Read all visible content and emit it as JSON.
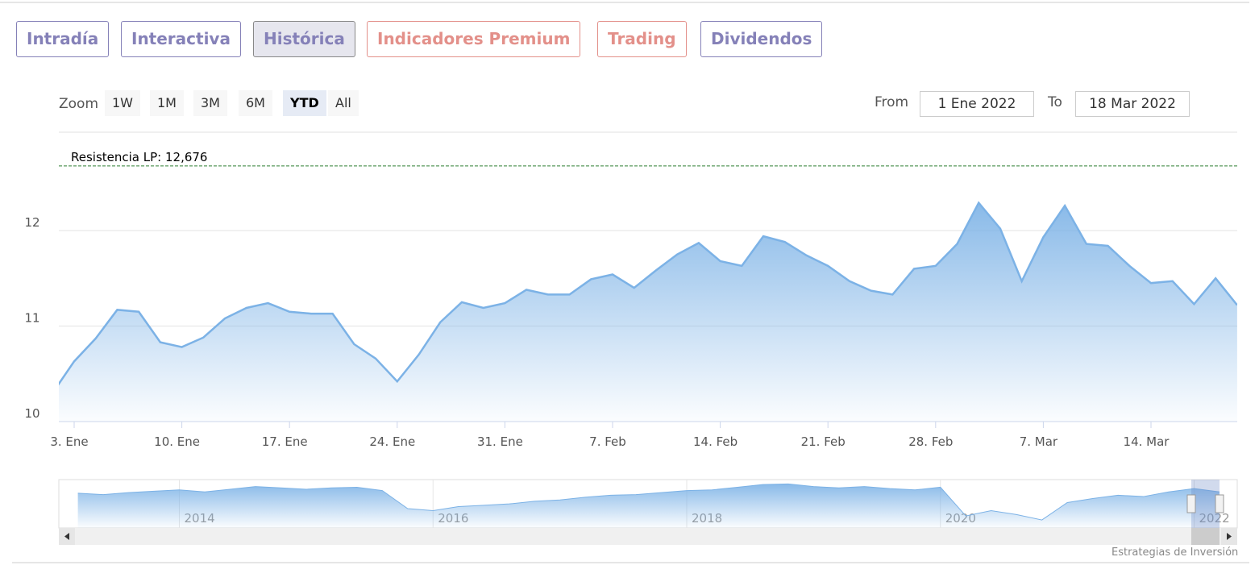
{
  "tabs": [
    {
      "label": "Intradía",
      "color": "#8581b8"
    },
    {
      "label": "Interactiva",
      "color": "#8581b8"
    },
    {
      "label": "Histórica",
      "color": "#8581b8",
      "active": true
    },
    {
      "label": "Indicadores Premium",
      "color": "#e3908a"
    },
    {
      "label": "Trading",
      "color": "#e3908a"
    },
    {
      "label": "Dividendos",
      "color": "#8581b8"
    }
  ],
  "range_selector": {
    "zoom_label": "Zoom",
    "buttons": [
      {
        "label": "1W"
      },
      {
        "label": "1M"
      },
      {
        "label": "3M"
      },
      {
        "label": "6M"
      },
      {
        "label": "YTD",
        "active": true
      },
      {
        "label": "All"
      }
    ],
    "from_label": "From",
    "from": "1 Ene 2022",
    "to_label": "To",
    "to": "18 Mar 2022"
  },
  "credit": "Estrategias de Inversión",
  "chart_data": {
    "type": "area",
    "color": "#7cb2e6",
    "categories": [
      null,
      "3. Ene",
      null,
      null,
      null,
      null,
      "10. Ene",
      null,
      null,
      null,
      null,
      "17. Ene",
      null,
      null,
      null,
      null,
      "24. Ene",
      null,
      null,
      null,
      null,
      "31. Ene",
      null,
      null,
      null,
      null,
      "7. Feb",
      null,
      null,
      null,
      null,
      "14. Feb",
      null,
      null,
      null,
      null,
      "21. Feb",
      null,
      null,
      null,
      null,
      "28. Feb",
      null,
      null,
      null,
      null,
      "7. Mar",
      null,
      null,
      null,
      null,
      "14. Mar",
      null,
      null,
      null,
      null
    ],
    "values": [
      10.3,
      10.63,
      10.87,
      11.17,
      11.15,
      10.83,
      10.78,
      10.88,
      11.08,
      11.19,
      11.24,
      11.15,
      11.13,
      11.13,
      10.81,
      10.66,
      10.42,
      10.7,
      11.04,
      11.25,
      11.19,
      11.24,
      11.38,
      11.33,
      11.33,
      11.49,
      11.54,
      11.4,
      11.58,
      11.75,
      11.87,
      11.68,
      11.63,
      11.94,
      11.88,
      11.74,
      11.63,
      11.47,
      11.37,
      11.33,
      11.6,
      11.63,
      11.86,
      12.29,
      12.02,
      11.47,
      11.93,
      12.26,
      11.86,
      11.84,
      11.63,
      11.45,
      11.47,
      11.23,
      11.5,
      11.22
    ],
    "ylim": [
      10,
      13
    ],
    "yticks": [
      10,
      11,
      12
    ],
    "grid": true,
    "annotations": [
      {
        "value": 12.676,
        "label": "Resistencia LP: 12,676",
        "color": "#2e7d32"
      }
    ]
  },
  "navigator": {
    "type": "area",
    "color": "#7cb2e6",
    "x": [
      2013.2,
      2013.4,
      2013.6,
      2013.8,
      2014.0,
      2014.2,
      2014.4,
      2014.6,
      2014.8,
      2015.0,
      2015.2,
      2015.4,
      2015.6,
      2015.8,
      2016.0,
      2016.2,
      2016.4,
      2016.6,
      2016.8,
      2017.0,
      2017.2,
      2017.4,
      2017.6,
      2017.8,
      2018.0,
      2018.2,
      2018.4,
      2018.6,
      2018.8,
      2019.0,
      2019.2,
      2019.4,
      2019.6,
      2019.8,
      2020.0,
      2020.2,
      2020.4,
      2020.6,
      2020.8,
      2021.0,
      2021.2,
      2021.4,
      2021.6,
      2021.8,
      2022.0,
      2022.2
    ],
    "values": [
      11.2,
      11.0,
      11.3,
      11.5,
      11.7,
      11.4,
      11.8,
      12.2,
      12.0,
      11.8,
      12.0,
      12.1,
      11.6,
      8.9,
      8.6,
      9.2,
      9.4,
      9.6,
      10.0,
      10.2,
      10.6,
      10.9,
      11.0,
      11.3,
      11.6,
      11.7,
      12.1,
      12.5,
      12.6,
      12.2,
      12.0,
      12.2,
      11.9,
      11.7,
      12.1,
      7.8,
      8.6,
      8.0,
      7.2,
      9.8,
      10.4,
      10.9,
      10.7,
      11.4,
      11.9,
      11.4
    ],
    "xlim": [
      2013.05,
      2022.34
    ],
    "xticks": [
      2014,
      2016,
      2018,
      2020,
      2022
    ],
    "ylim": [
      6,
      13
    ]
  }
}
